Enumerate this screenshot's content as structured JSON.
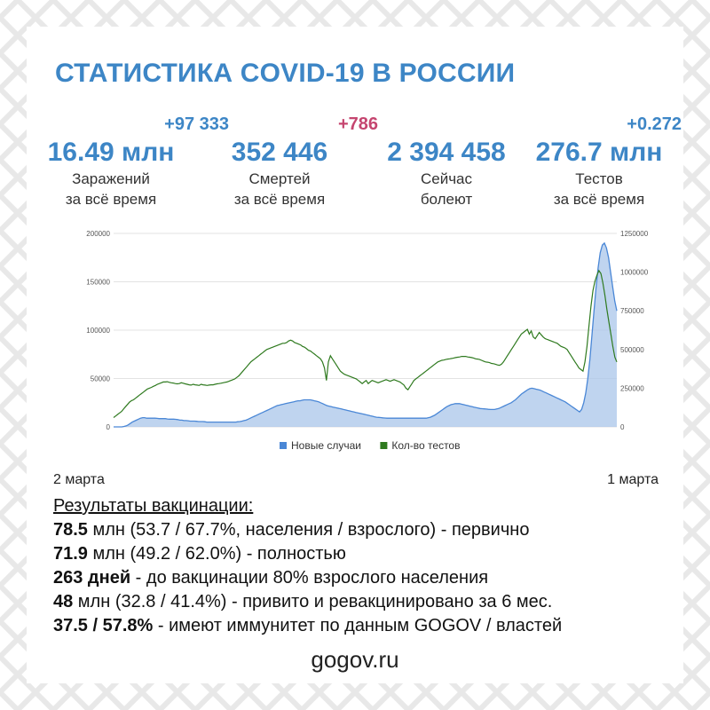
{
  "title": "СТАТИСТИКА COVID-19 В РОССИИ",
  "stats": [
    {
      "delta": "+97 333",
      "delta_color": "#3d86c6",
      "value": "16.49 млн",
      "caption1": "Заражений",
      "caption2": "за всё время"
    },
    {
      "delta": "+786",
      "delta_color": "#c5456f",
      "value": "352 446",
      "caption1": "Смертей",
      "caption2": "за всё время"
    },
    {
      "delta": "",
      "delta_color": "#3d86c6",
      "value": "2 394 458",
      "caption1": "Сейчас",
      "caption2": "болеют"
    },
    {
      "delta": "+0.272",
      "delta_color": "#3d86c6",
      "value": "276.7 млн",
      "caption1": "Тестов",
      "caption2": "за всё время"
    }
  ],
  "chart_data": {
    "type": "area",
    "series": [
      {
        "name": "Новые случаи",
        "kind": "area",
        "axis": "left",
        "color": "#4a87d6",
        "values": [
          0,
          0,
          0,
          0,
          0,
          500,
          1000,
          2000,
          3500,
          5000,
          6000,
          7000,
          8000,
          9000,
          9500,
          9500,
          9000,
          9000,
          9000,
          9000,
          9000,
          8800,
          8500,
          8500,
          8500,
          8500,
          8200,
          8000,
          8000,
          8000,
          7800,
          7500,
          7000,
          7000,
          6500,
          6500,
          6300,
          6000,
          6000,
          6000,
          5800,
          5500,
          5500,
          5500,
          5300,
          5000,
          5000,
          5000,
          5000,
          5000,
          5000,
          5000,
          5000,
          5000,
          5000,
          5000,
          5000,
          5000,
          5000,
          5000,
          5300,
          5500,
          6000,
          6500,
          7000,
          8000,
          9000,
          10000,
          11000,
          12000,
          13000,
          14000,
          15000,
          16000,
          17000,
          18000,
          19000,
          20000,
          21000,
          22000,
          22500,
          23000,
          23500,
          24000,
          24500,
          25000,
          25500,
          26000,
          26500,
          27000,
          27000,
          27500,
          28000,
          28000,
          28000,
          28000,
          27500,
          27000,
          26500,
          26000,
          25000,
          24000,
          23000,
          22000,
          21500,
          21000,
          20500,
          20000,
          19500,
          19000,
          18500,
          18000,
          17500,
          17000,
          16500,
          16000,
          15500,
          15000,
          14500,
          14000,
          13500,
          13000,
          12500,
          12000,
          11500,
          11000,
          10500,
          10000,
          9800,
          9600,
          9400,
          9200,
          9000,
          9000,
          9000,
          9000,
          9000,
          9000,
          9000,
          9000,
          9000,
          9000,
          9000,
          9000,
          9000,
          9000,
          9000,
          9000,
          9000,
          9000,
          9000,
          9000,
          9500,
          10000,
          11000,
          12000,
          13500,
          15000,
          16500,
          18000,
          19500,
          21000,
          22000,
          23000,
          23500,
          24000,
          24000,
          24000,
          23500,
          23000,
          22500,
          22000,
          21500,
          21000,
          20500,
          20000,
          19500,
          19000,
          18800,
          18600,
          18400,
          18200,
          18000,
          18000,
          18000,
          18500,
          19000,
          20000,
          21000,
          22000,
          23000,
          24000,
          25000,
          26500,
          28000,
          30000,
          32000,
          34000,
          35500,
          37000,
          38500,
          39500,
          40000,
          39500,
          39000,
          38500,
          38000,
          37000,
          36000,
          35000,
          34000,
          33000,
          32000,
          31000,
          30000,
          29000,
          28000,
          27000,
          26000,
          24500,
          23000,
          21500,
          20000,
          18500,
          17000,
          15500,
          18000,
          25000,
          35000,
          50000,
          70000,
          95000,
          120000,
          145000,
          165000,
          180000,
          188000,
          190000,
          185000,
          175000,
          160000,
          145000,
          130000,
          120000
        ]
      },
      {
        "name": "Кол-во тестов",
        "kind": "line",
        "axis": "right",
        "color": "#2f7a1f",
        "values": [
          60000,
          70000,
          80000,
          90000,
          100000,
          115000,
          130000,
          145000,
          160000,
          170000,
          175000,
          185000,
          195000,
          205000,
          215000,
          225000,
          235000,
          245000,
          250000,
          255000,
          262000,
          268000,
          275000,
          280000,
          285000,
          290000,
          290000,
          292000,
          288000,
          285000,
          283000,
          280000,
          278000,
          280000,
          285000,
          282000,
          278000,
          275000,
          272000,
          270000,
          275000,
          272000,
          270000,
          268000,
          275000,
          272000,
          270000,
          268000,
          270000,
          272000,
          272000,
          275000,
          278000,
          280000,
          282000,
          285000,
          288000,
          290000,
          295000,
          300000,
          305000,
          310000,
          320000,
          330000,
          345000,
          360000,
          375000,
          390000,
          405000,
          420000,
          430000,
          440000,
          450000,
          460000,
          470000,
          480000,
          490000,
          500000,
          505000,
          510000,
          515000,
          520000,
          525000,
          530000,
          535000,
          540000,
          540000,
          545000,
          555000,
          560000,
          555000,
          545000,
          540000,
          535000,
          530000,
          520000,
          515000,
          505000,
          495000,
          490000,
          480000,
          470000,
          460000,
          450000,
          440000,
          420000,
          380000,
          300000,
          420000,
          460000,
          440000,
          420000,
          400000,
          380000,
          360000,
          350000,
          340000,
          335000,
          330000,
          325000,
          320000,
          315000,
          310000,
          300000,
          290000,
          280000,
          290000,
          300000,
          280000,
          290000,
          300000,
          295000,
          290000,
          285000,
          290000,
          295000,
          300000,
          305000,
          300000,
          295000,
          300000,
          305000,
          300000,
          295000,
          290000,
          280000,
          270000,
          250000,
          240000,
          260000,
          280000,
          300000,
          310000,
          320000,
          330000,
          340000,
          350000,
          360000,
          370000,
          380000,
          390000,
          400000,
          410000,
          420000,
          425000,
          430000,
          432000,
          435000,
          438000,
          440000,
          442000,
          445000,
          448000,
          450000,
          452000,
          455000,
          455000,
          455000,
          452000,
          450000,
          448000,
          445000,
          440000,
          438000,
          435000,
          430000,
          425000,
          420000,
          418000,
          415000,
          410000,
          408000,
          405000,
          400000,
          398000,
          405000,
          420000,
          440000,
          460000,
          480000,
          500000,
          520000,
          540000,
          560000,
          580000,
          600000,
          610000,
          620000,
          630000,
          600000,
          620000,
          580000,
          570000,
          590000,
          610000,
          595000,
          580000,
          570000,
          565000,
          560000,
          555000,
          550000,
          545000,
          540000,
          530000,
          520000,
          515000,
          510000,
          500000,
          480000,
          460000,
          440000,
          420000,
          400000,
          380000,
          370000,
          360000,
          420000,
          520000,
          650000,
          780000,
          880000,
          940000,
          980000,
          1010000,
          990000,
          930000,
          850000,
          760000,
          680000,
          600000,
          520000,
          450000,
          420000
        ]
      }
    ],
    "y_left": {
      "min": 0,
      "max": 200000,
      "ticks": [
        "0",
        "50000",
        "100000",
        "150000",
        "200000"
      ]
    },
    "y_right": {
      "min": 0,
      "max": 1250000,
      "ticks": [
        "0",
        "250000",
        "500000",
        "750000",
        "1000000",
        "1250000"
      ]
    },
    "grid": true,
    "legend_position": "bottom-center",
    "x_start_label": "2 марта",
    "x_end_label": "1 марта"
  },
  "vaccination": {
    "heading": "Результаты вакцинации:",
    "lines": [
      {
        "bold": "78.5",
        "text": " млн (53.7 / 67.7%, населения / взрослого) - первично"
      },
      {
        "bold": "71.9",
        "text": " млн (49.2 / 62.0%) - полностью"
      },
      {
        "bold": "263 дней",
        "text": " - до вакцинации 80% взрослого населения"
      },
      {
        "bold": "48",
        "text": " млн (32.8 / 41.4%) - привито и ревакцинировано за 6 мес."
      },
      {
        "bold": "37.5 / 57.8%",
        "text": " - имеют иммунитет по данным GOGOV / властей"
      }
    ]
  },
  "site": "gogov.ru"
}
